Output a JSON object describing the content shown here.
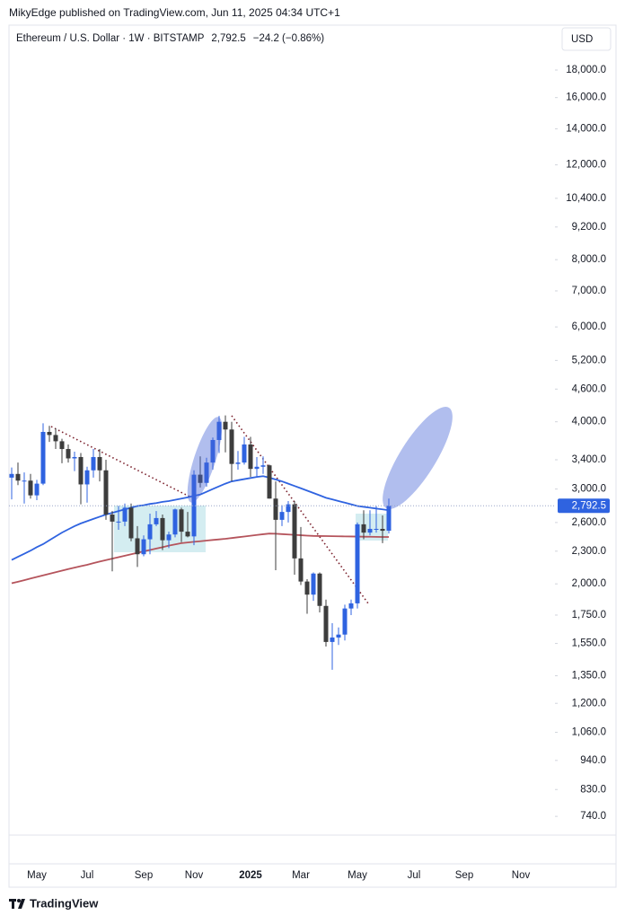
{
  "header": {
    "published": "MikyEdge published on TradingView.com, Jun 11, 2025 04:34 UTC+1"
  },
  "chart_data": {
    "type": "candlestick",
    "title": "Ethereum / U.S. Dollar · 1W · BITSTAMP",
    "last_price": {
      "value": 2792.5,
      "label": "2,792.5"
    },
    "change": "−24.2 (−0.86%)",
    "currency": "USD",
    "log_scale": true,
    "grid": false,
    "up_color": "#2f63e0",
    "down_color": "#3d3d3d",
    "ylim": [
      683,
      21810
    ],
    "yticks": [
      {
        "value": 18000,
        "label": "18,000.0"
      },
      {
        "value": 16000,
        "label": "16,000.0"
      },
      {
        "value": 14000,
        "label": "14,000.0"
      },
      {
        "value": 12000,
        "label": "12,000.0"
      },
      {
        "value": 10400,
        "label": "10,400.0"
      },
      {
        "value": 9200,
        "label": "9,200.0"
      },
      {
        "value": 8000,
        "label": "8,000.0"
      },
      {
        "value": 7000,
        "label": "7,000.0"
      },
      {
        "value": 6000,
        "label": "6,000.0"
      },
      {
        "value": 5200,
        "label": "5,200.0"
      },
      {
        "value": 4600,
        "label": "4,600.0"
      },
      {
        "value": 4000,
        "label": "4,000.0"
      },
      {
        "value": 3400,
        "label": "3,400.0"
      },
      {
        "value": 3000,
        "label": "3,000.0"
      },
      {
        "value": 2600,
        "label": "2,600.0"
      },
      {
        "value": 2300,
        "label": "2,300.0"
      },
      {
        "value": 2000,
        "label": "2,000.0"
      },
      {
        "value": 1750,
        "label": "1,750.0"
      },
      {
        "value": 1550,
        "label": "1,550.0"
      },
      {
        "value": 1350,
        "label": "1,350.0"
      },
      {
        "value": 1200,
        "label": "1,200.0"
      },
      {
        "value": 1060,
        "label": "1,060.0"
      },
      {
        "value": 940,
        "label": "940.0"
      },
      {
        "value": 830,
        "label": "830.0"
      },
      {
        "value": 740,
        "label": "740.0"
      }
    ],
    "categories": [
      null,
      null,
      null,
      null,
      "May",
      null,
      null,
      null,
      null,
      null,
      null,
      null,
      "Jul",
      null,
      null,
      null,
      null,
      null,
      null,
      null,
      null,
      "Sep",
      null,
      null,
      null,
      null,
      null,
      null,
      null,
      "Nov",
      null,
      null,
      null,
      null,
      null,
      null,
      null,
      null,
      "2025",
      null,
      null,
      null,
      null,
      null,
      null,
      null,
      "Mar",
      null,
      null,
      null,
      null,
      null,
      null,
      null,
      null,
      "May",
      null,
      null,
      null,
      null,
      null,
      null,
      null,
      null,
      "Jul",
      null,
      null,
      null,
      null,
      null,
      null,
      null,
      "Sep",
      null,
      null,
      null,
      null,
      null,
      null,
      null,
      null,
      "Nov",
      null,
      null,
      null,
      null,
      null
    ],
    "open": [
      3150,
      3200,
      3110,
      3110,
      2920,
      3070,
      3830,
      3780,
      3680,
      3560,
      3420,
      3440,
      3060,
      3250,
      3440,
      3250,
      2690,
      2610,
      2610,
      2770,
      2430,
      2270,
      2420,
      2580,
      2650,
      2410,
      2470,
      2750,
      2500,
      2450,
      3190,
      3080,
      3360,
      3700,
      4000,
      3870,
      3340,
      3360,
      3630,
      3270,
      3300,
      3320,
      2880,
      2630,
      2720,
      2810,
      2230,
      2020,
      1910,
      2090,
      1820,
      1560,
      1590,
      1610,
      1800,
      1840,
      2580,
      2490,
      2530,
      2530,
      2510,
      null,
      null,
      null,
      null,
      null,
      null,
      null,
      null,
      null,
      null,
      null,
      null,
      null,
      null,
      null,
      null,
      null,
      null,
      null,
      null,
      null,
      null,
      null,
      null,
      null,
      null
    ],
    "high": [
      3290,
      3360,
      3220,
      3200,
      3120,
      3975,
      3930,
      3890,
      3720,
      3630,
      3520,
      3500,
      3300,
      3560,
      3560,
      3400,
      2730,
      2790,
      2820,
      2820,
      2560,
      2460,
      2700,
      2730,
      2690,
      2500,
      2760,
      2770,
      2720,
      3250,
      3450,
      3430,
      3740,
      4100,
      4110,
      4000,
      3530,
      3750,
      3750,
      3440,
      3450,
      3330,
      3100,
      2800,
      2850,
      2850,
      2550,
      2040,
      2100,
      2100,
      1870,
      1690,
      1660,
      1830,
      1870,
      2600,
      2740,
      2740,
      2790,
      2680,
      2880,
      null,
      null,
      null,
      null,
      null,
      null,
      null,
      null,
      null,
      null,
      null,
      null,
      null,
      null,
      null,
      null,
      null,
      null,
      null,
      null,
      null,
      null,
      null,
      null,
      null,
      null
    ],
    "low": [
      2870,
      3050,
      2820,
      2880,
      2860,
      3050,
      3670,
      3560,
      3350,
      3360,
      3240,
      2810,
      2830,
      3150,
      3100,
      2630,
      2110,
      2520,
      2560,
      2400,
      2150,
      2250,
      2270,
      2560,
      2310,
      2330,
      2440,
      2390,
      2440,
      2360,
      3020,
      3030,
      3260,
      3500,
      3510,
      3100,
      3260,
      3330,
      3160,
      3150,
      3200,
      2880,
      2120,
      2560,
      2600,
      2080,
      1990,
      1760,
      1860,
      1770,
      1530,
      1385,
      1540,
      1570,
      1750,
      1800,
      2420,
      2460,
      2490,
      2380,
      2480,
      null,
      null,
      null,
      null,
      null,
      null,
      null,
      null,
      null,
      null,
      null,
      null,
      null,
      null,
      null,
      null,
      null,
      null,
      null,
      null,
      null,
      null,
      null,
      null,
      null,
      null
    ],
    "close": [
      3200,
      3110,
      3110,
      2920,
      3070,
      3830,
      3780,
      3680,
      3560,
      3420,
      3440,
      3060,
      3250,
      3440,
      3250,
      2690,
      2610,
      2610,
      2770,
      2430,
      2270,
      2420,
      2580,
      2650,
      2410,
      2470,
      2750,
      2500,
      2450,
      3190,
      3080,
      3360,
      3700,
      4000,
      3870,
      3340,
      3360,
      3630,
      3270,
      3300,
      3320,
      2880,
      2630,
      2720,
      2810,
      2230,
      2020,
      1910,
      2090,
      1820,
      1560,
      1590,
      1610,
      1800,
      1840,
      2580,
      2490,
      2530,
      2530,
      2510,
      2792.5,
      null,
      null,
      null,
      null,
      null,
      null,
      null,
      null,
      null,
      null,
      null,
      null,
      null,
      null,
      null,
      null,
      null,
      null,
      null,
      null,
      null,
      null,
      null,
      null,
      null,
      null
    ],
    "moving_averages": [
      {
        "color": "#2f63e0",
        "values": [
          2215,
          2245,
          2275,
          2305,
          2340,
          2370,
          2410,
          2450,
          2490,
          2525,
          2560,
          2590,
          2615,
          2640,
          2665,
          2690,
          2710,
          2730,
          2750,
          2770,
          2790,
          2800,
          2815,
          2825,
          2840,
          2850,
          2865,
          2880,
          2895,
          2915,
          2930,
          2965,
          3000,
          3035,
          3070,
          3100,
          3115,
          3130,
          3145,
          3160,
          3170,
          3150,
          3125,
          3100,
          3070,
          3040,
          3010,
          2980,
          2950,
          2920,
          2890,
          2870,
          2850,
          2830,
          2810,
          2790,
          2780,
          2770,
          2760,
          2750,
          2740,
          null,
          null,
          null,
          null,
          null,
          null,
          null,
          null,
          null,
          null,
          null,
          null,
          null,
          null,
          null,
          null,
          null,
          null,
          null,
          null,
          null,
          null,
          null,
          null,
          null,
          null
        ]
      },
      {
        "color": "#b5545c",
        "values": [
          2005,
          2018,
          2032,
          2046,
          2060,
          2074,
          2088,
          2102,
          2116,
          2130,
          2144,
          2157,
          2170,
          2185,
          2200,
          2214,
          2228,
          2242,
          2256,
          2270,
          2284,
          2298,
          2312,
          2326,
          2340,
          2355,
          2368,
          2380,
          2387,
          2394,
          2400,
          2407,
          2413,
          2419,
          2425,
          2433,
          2441,
          2449,
          2457,
          2465,
          2473,
          2480,
          2478,
          2474,
          2470,
          2466,
          2462,
          2458,
          2455,
          2454,
          2453,
          2452,
          2451,
          2450,
          2449,
          2448,
          2447,
          2446,
          2445,
          2444,
          2444,
          null,
          null,
          null,
          null,
          null,
          null,
          null,
          null,
          null,
          null,
          null,
          null,
          null,
          null,
          null,
          null,
          null,
          null,
          null,
          null,
          null,
          null,
          null,
          null,
          null,
          null
        ]
      }
    ]
  },
  "footer": {
    "brand": "TradingView"
  }
}
